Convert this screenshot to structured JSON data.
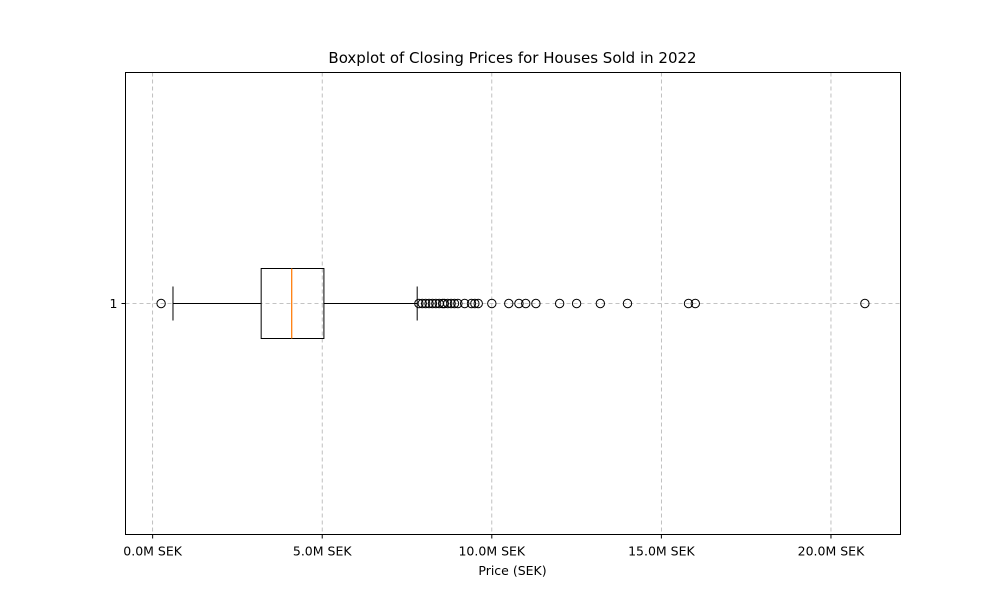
{
  "chart_data": {
    "type": "boxplot",
    "orientation": "horizontal",
    "title": "Boxplot of Closing Prices for Houses Sold in 2022",
    "xlabel": "Price (SEK)",
    "ylabel": "",
    "xlim": [
      -0.8,
      22.05
    ],
    "x_unit": "M SEK",
    "x_ticks": [
      0,
      5,
      10,
      15,
      20
    ],
    "x_tick_labels": [
      "0.0M SEK",
      "5.0M SEK",
      "10.0M SEK",
      "15.0M SEK",
      "20.0M SEK"
    ],
    "y_tick_labels": [
      "1"
    ],
    "grid": true,
    "colors": {
      "box": "#000000",
      "median": "#ff7f0e",
      "grid": "#b0b0b0"
    },
    "boxes": [
      {
        "label": "1",
        "whisker_low": 0.6,
        "q1": 3.2,
        "median": 4.1,
        "q3": 5.05,
        "whisker_high": 7.8,
        "outliers": [
          0.25,
          7.85,
          7.95,
          8.05,
          8.15,
          8.25,
          8.35,
          8.45,
          8.55,
          8.6,
          8.7,
          8.8,
          8.9,
          9.0,
          9.2,
          9.4,
          9.5,
          9.6,
          10.0,
          10.5,
          10.8,
          11.0,
          11.3,
          12.0,
          12.5,
          13.2,
          14.0,
          15.8,
          16.0,
          21.0
        ]
      }
    ]
  }
}
